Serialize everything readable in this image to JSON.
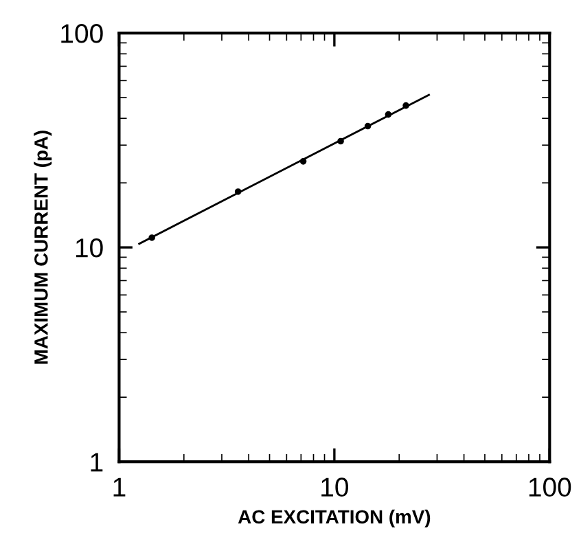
{
  "chart_data": {
    "type": "scatter",
    "xlabel": "AC EXCITATION (mV)",
    "ylabel": "MAXIMUM CURRENT (pA)",
    "log": "xy",
    "xlim": [
      1,
      100
    ],
    "ylim": [
      1,
      100
    ],
    "xticks": [
      1,
      10,
      100
    ],
    "yticks": [
      1,
      10,
      100
    ],
    "grid": false,
    "legend": false,
    "marker": "circle",
    "series": [
      {
        "color": "#000000",
        "x": [
          1.42,
          3.57,
          7.17,
          10.7,
          14.3,
          17.8,
          21.5
        ],
        "values": [
          11.1,
          18.2,
          25.2,
          31.3,
          36.8,
          41.7,
          45.9
        ]
      },
      {
        "type": "line",
        "marker": "none",
        "color": "#000000",
        "x": [
          1.24,
          27.5
        ],
        "values": [
          10.4,
          51.5
        ]
      }
    ]
  }
}
